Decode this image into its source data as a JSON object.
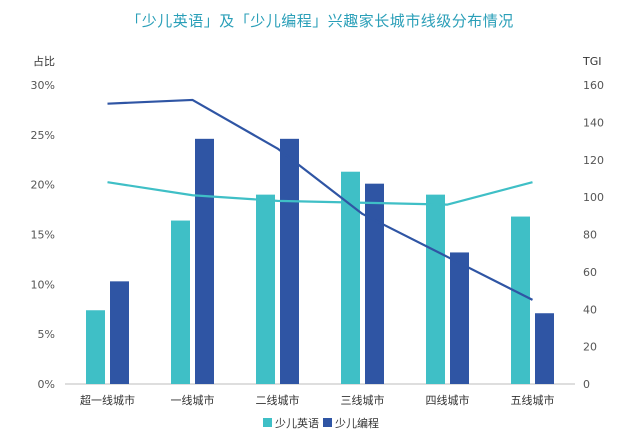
{
  "chart_data": {
    "type": "bar",
    "title": "「少儿英语」及「少儿编程」兴趣家长城市线级分布情况",
    "ylabel_left": "占比",
    "ylabel_right": "TGI",
    "categories": [
      "超一线城市",
      "一线城市",
      "二线城市",
      "三线城市",
      "四线城市",
      "五线城市"
    ],
    "left_axis": {
      "ticks": [
        "0%",
        "5%",
        "10%",
        "15%",
        "20%",
        "25%",
        "30%"
      ],
      "range": [
        0,
        30
      ]
    },
    "right_axis": {
      "ticks": [
        "0",
        "20",
        "40",
        "60",
        "80",
        "100",
        "120",
        "140",
        "160"
      ],
      "range": [
        0,
        160
      ]
    },
    "series": [
      {
        "name": "少儿英语",
        "kind": "bar",
        "axis": "left",
        "color": "#3fbfc6",
        "values": [
          7.4,
          16.4,
          19.0,
          21.3,
          19.0,
          16.8
        ]
      },
      {
        "name": "少儿编程",
        "kind": "bar",
        "axis": "left",
        "color": "#2f55a4",
        "values": [
          10.3,
          24.6,
          24.6,
          20.1,
          13.2,
          7.1
        ]
      },
      {
        "kind": "line",
        "axis": "right",
        "color": "#3fbfc6",
        "values": [
          108,
          101,
          98,
          97,
          96,
          108
        ]
      },
      {
        "kind": "line",
        "axis": "right",
        "color": "#2f55a4",
        "values": [
          150,
          152,
          126,
          91,
          68,
          45
        ]
      }
    ],
    "legend_position": "bottom-center",
    "grid": false
  }
}
